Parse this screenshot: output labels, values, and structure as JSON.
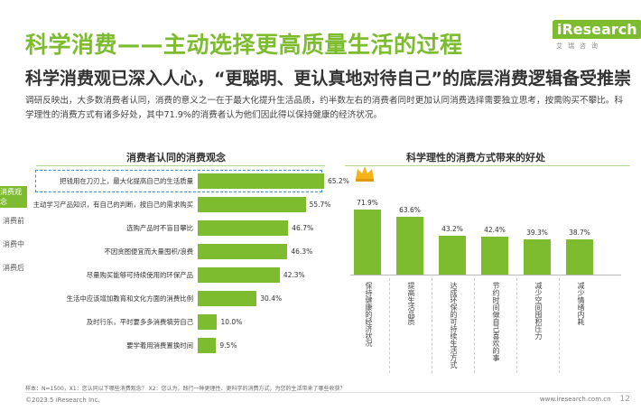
{
  "header": {
    "title": "科学消费——主动选择更高质量生活的过程",
    "subtitle": "科学消费观已深入人心，“更聪明、更认真地对待自己”的底层消费逻辑备受推崇",
    "intro": "调研反映出，大多数消费者认同，消费的意义之一在于最大化提升生活品质，约半数左右的消费者同时更加认同消费选择需要独立思考，按需购买不攀比。科学理性的消费方式有诸多好处，其中71.9%的消费者认为他们因此得以保持健康的经济状况。"
  },
  "logo": {
    "mark": "iResearch",
    "sub": "艾瑞咨询",
    "color": "#7dbb2f"
  },
  "side_nav": {
    "items": [
      {
        "label": "消费观念",
        "active": true
      },
      {
        "label": "消费前",
        "active": false
      },
      {
        "label": "消费中",
        "active": false
      },
      {
        "label": "消费后",
        "active": false
      }
    ]
  },
  "chart_data": [
    {
      "type": "bar",
      "orientation": "horizontal",
      "title": "消费者认同的消费观念",
      "categories": [
        "把钱用在刀刃上，最大化提高自己的生活质量",
        "主动学习产品知识，有自己的判断，按自己的需求购买",
        "选购产品时不盲目攀比",
        "不因贪图便宜而大量囤积/浪费",
        "尽量购买能够可持续使用的环保产品",
        "生活中应该增加教育和文化方面的消费比例",
        "及时行乐，平时要多多消费犒劳自己",
        "要学着用消费置换时间"
      ],
      "values": [
        65.2,
        55.7,
        46.7,
        46.3,
        42.3,
        30.4,
        10.0,
        9.5
      ],
      "value_labels": [
        "65.2%",
        "55.7%",
        "46.7%",
        "46.3%",
        "42.3%",
        "30.4%",
        "10.0%",
        "9.5%"
      ],
      "highlight_index": 0
    },
    {
      "type": "bar",
      "orientation": "vertical",
      "title": "科学理性的消费方式带来的好处",
      "categories": [
        "保持健康的经济状况",
        "提高生活品质",
        "达成环保的可持续生活方式",
        "节约时间做自己喜欢的事",
        "减少空间囤积压力",
        "减少情绪内耗"
      ],
      "values": [
        71.9,
        63.6,
        43.2,
        42.4,
        39.3,
        38.7
      ],
      "value_labels": [
        "71.9%",
        "63.6%",
        "43.2%",
        "42.4%",
        "39.3%",
        "38.7%"
      ]
    }
  ],
  "footer": {
    "footnote": "样本：N=1500，X1：您认同以下哪些消费观念？ X2：您认为，践行一种更理性、更科学的消费方式，为您的生活带来了哪些收获？",
    "copyright": "©2023.5 iResearch Inc.",
    "site": "www.iresearch.com.cn",
    "page": "12"
  },
  "colors": {
    "accent": "#7dbb2f",
    "highlight_border": "#3c8fd8"
  }
}
